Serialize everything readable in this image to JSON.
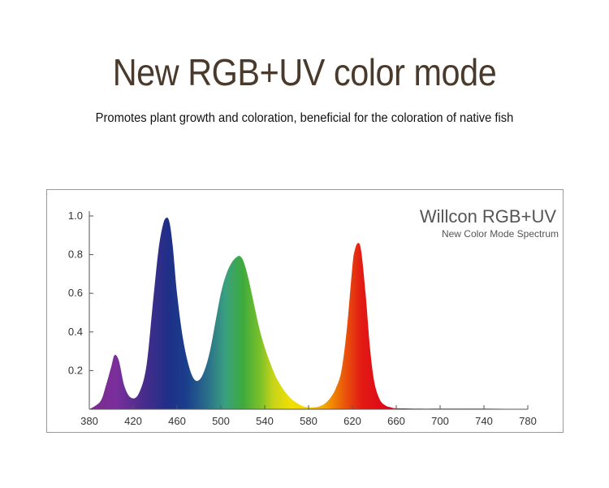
{
  "header": {
    "title": "New RGB+UV color mode",
    "subtitle": "Promotes plant growth and coloration, beneficial for the coloration of native fish"
  },
  "chart_data": {
    "type": "area",
    "title": "Willcon RGB+UV",
    "subtitle": "New Color Mode Spectrum",
    "xlabel": "",
    "ylabel": "",
    "xlim": [
      380,
      780
    ],
    "ylim": [
      0,
      1.0
    ],
    "x_ticks": [
      380,
      420,
      460,
      500,
      540,
      580,
      620,
      660,
      700,
      740,
      780
    ],
    "y_ticks": [
      0.2,
      0.4,
      0.6,
      0.8,
      1.0
    ],
    "y_tick_labels": [
      "0.2",
      "0.4",
      "0.6",
      "0.8",
      "1.0"
    ],
    "grid": false,
    "series": [
      {
        "x": [
          380,
          390,
          395,
          400,
          403,
          407,
          412,
          418,
          425,
          432,
          438,
          443,
          447,
          450,
          453,
          456,
          460,
          465,
          470,
          475,
          480,
          485,
          490,
          495,
          500,
          505,
          510,
          515,
          518,
          521,
          525,
          530,
          535,
          540,
          545,
          550,
          555,
          560,
          565,
          570,
          575,
          580,
          585,
          590,
          595,
          600,
          605,
          610,
          615,
          620,
          622,
          625,
          628,
          632,
          636,
          640,
          645,
          650,
          655,
          660,
          680,
          700,
          720,
          740,
          760,
          780
        ],
        "y": [
          0.0,
          0.04,
          0.12,
          0.22,
          0.28,
          0.25,
          0.12,
          0.06,
          0.08,
          0.22,
          0.55,
          0.82,
          0.95,
          0.99,
          0.97,
          0.85,
          0.6,
          0.38,
          0.24,
          0.16,
          0.15,
          0.2,
          0.3,
          0.45,
          0.6,
          0.7,
          0.76,
          0.79,
          0.79,
          0.76,
          0.68,
          0.55,
          0.42,
          0.32,
          0.24,
          0.17,
          0.12,
          0.08,
          0.05,
          0.03,
          0.015,
          0.01,
          0.01,
          0.015,
          0.03,
          0.06,
          0.11,
          0.2,
          0.42,
          0.74,
          0.82,
          0.86,
          0.82,
          0.6,
          0.32,
          0.14,
          0.05,
          0.02,
          0.01,
          0.005,
          0.003,
          0.003,
          0.003,
          0.003,
          0.002,
          0.0
        ]
      }
    ]
  }
}
